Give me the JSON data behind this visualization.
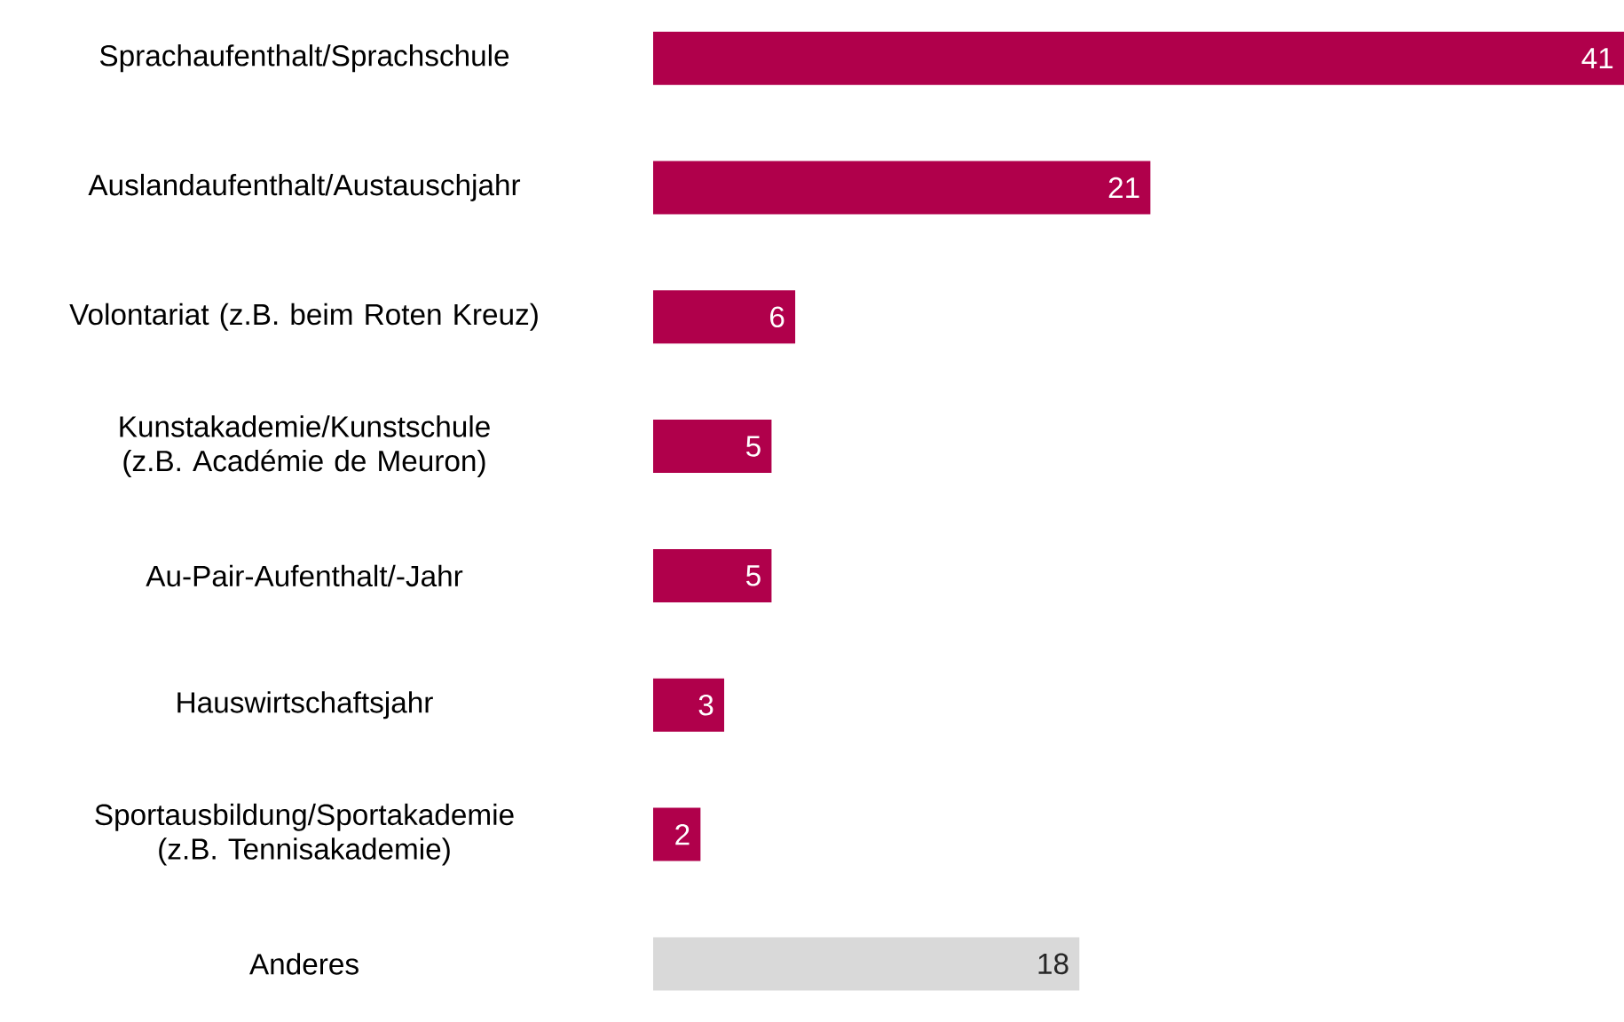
{
  "chart_data": {
    "type": "bar",
    "orientation": "horizontal",
    "categories": [
      "Sprachaufenthalt/Sprachschule",
      "Auslandaufenthalt/Austauschjahr",
      "Volontariat (z.B. beim Roten Kreuz)",
      "Kunstakademie/Kunstschule (z.B. Académie de Meuron)",
      "Au-Pair-Aufenthalt/-Jahr",
      "Hauswirtschaftsjahr",
      "Sportausbildung/Sportakademie (z.B. Tennisakademie)",
      "Anderes"
    ],
    "values": [
      41,
      21,
      6,
      5,
      5,
      3,
      2,
      18
    ],
    "colors": [
      "#b0004b",
      "#b0004b",
      "#b0004b",
      "#b0004b",
      "#b0004b",
      "#b0004b",
      "#b0004b",
      "#d9d9d9"
    ],
    "value_labels": [
      "41",
      "21",
      "6",
      "5",
      "5",
      "3",
      "2",
      "18"
    ]
  }
}
